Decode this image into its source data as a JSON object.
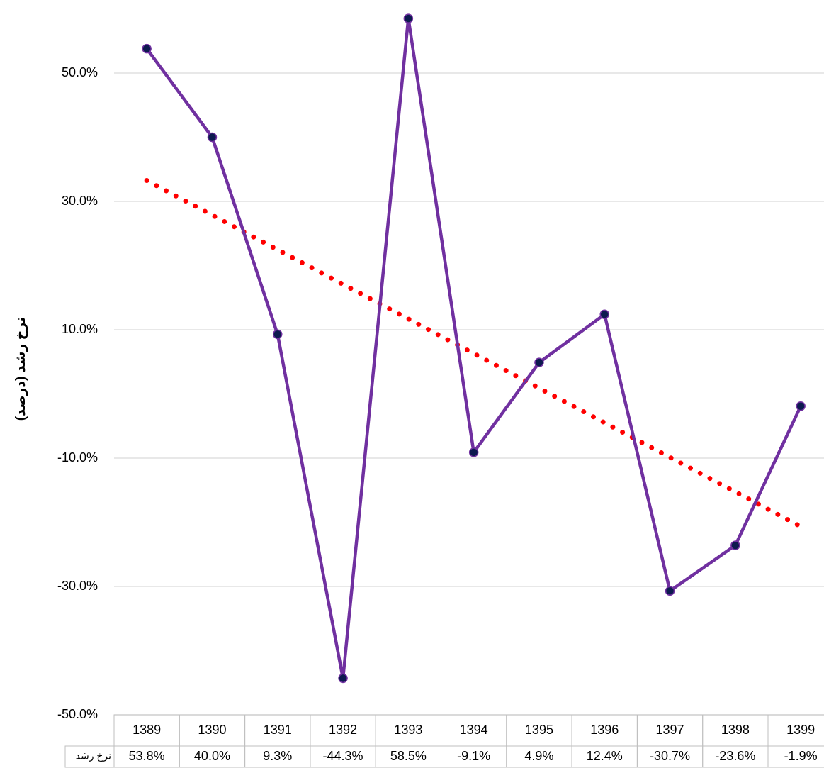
{
  "chart_data": {
    "type": "line",
    "y_label": "نرخ رشد (درصد)",
    "categories": [
      "1389",
      "1390",
      "1391",
      "1392",
      "1393",
      "1394",
      "1395",
      "1396",
      "1397",
      "1398",
      "1399"
    ],
    "series": [
      {
        "name": "نرخ رشد",
        "color": "#7030a0",
        "marker_color": "#0d1a4f",
        "values": [
          53.8,
          40.0,
          9.3,
          -44.3,
          58.5,
          -9.1,
          4.9,
          12.4,
          -30.7,
          -23.6,
          -1.9
        ],
        "value_labels": [
          "53.8%",
          "40.0%",
          "9.3%",
          "-44.3%",
          "58.5%",
          "-9.1%",
          "4.9%",
          "12.4%",
          "-30.7%",
          "-23.6%",
          "-1.9%"
        ]
      }
    ],
    "trendline": {
      "type": "linear",
      "color": "#ff0000"
    },
    "ylim": [
      -50,
      60
    ],
    "yticks": [
      {
        "value": -50,
        "label": "-50.0%"
      },
      {
        "value": -30,
        "label": "-30.0%"
      },
      {
        "value": -10,
        "label": "-10.0%"
      },
      {
        "value": 10,
        "label": "10.0%"
      },
      {
        "value": 30,
        "label": "30.0%"
      },
      {
        "value": 50,
        "label": "50.0%"
      }
    ],
    "grid": true,
    "data_table": true
  }
}
